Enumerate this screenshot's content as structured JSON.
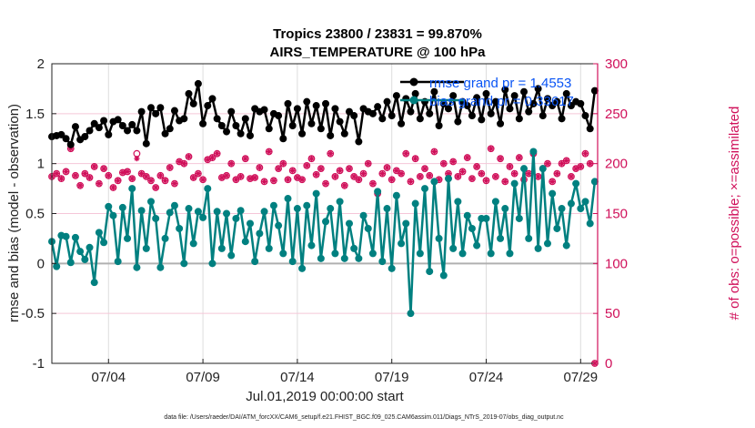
{
  "chart_data": {
    "type": "line",
    "title": [
      "Tropics 23800 / 23831 = 99.870%",
      "AIRS_TEMPERATURE @ 100 hPa"
    ],
    "xlabel": "Jul.01,2019 00:00:00 start",
    "ylabel": "rmse and bias (model - observation)",
    "y2label": "# of obs: o=possible; ×=assimilated",
    "footer": "data file: /Users/raeder/DAI/ATM_forcXX/CAM6_setup/f.e21.FHIST_BGC.f09_025.CAM6assim.011/Diags_NTrS_2019-07/obs_diag_output.nc",
    "x_unit": "days since Jul.01,2019 00:00",
    "x_step_days": 0.25,
    "xlim": [
      0,
      28.9
    ],
    "xticks": [
      {
        "value": 3,
        "label": "07/04"
      },
      {
        "value": 8,
        "label": "07/09"
      },
      {
        "value": 13,
        "label": "07/14"
      },
      {
        "value": 18,
        "label": "07/19"
      },
      {
        "value": 23,
        "label": "07/24"
      },
      {
        "value": 28,
        "label": "07/29"
      }
    ],
    "ylim": [
      -1,
      2
    ],
    "yticks": [
      "-1",
      "-0.5",
      "0",
      "0.5",
      "1",
      "1.5",
      "2"
    ],
    "y2lim": [
      0,
      300
    ],
    "y2ticks": [
      "0",
      "50",
      "100",
      "150",
      "200",
      "250",
      "300"
    ],
    "legend": {
      "placement": "top-right",
      "entries": [
        "rmse grand pr = 1.4553",
        "bias grand pr = 0.33617"
      ]
    },
    "colors": {
      "rmse": "#000000",
      "bias": "#008080",
      "obs": "#d0105a",
      "legend_text": "#0a55f5",
      "grid_v": "#dddddd",
      "grid_h": "#f5c6d8",
      "zero": "#b0b0b0"
    },
    "series": [
      {
        "name": "rmse",
        "axis": "left",
        "values": [
          1.27,
          1.28,
          1.29,
          1.25,
          1.19,
          1.37,
          1.24,
          1.27,
          1.33,
          1.4,
          1.36,
          1.43,
          1.29,
          1.42,
          1.44,
          1.38,
          1.33,
          1.39,
          1.33,
          1.52,
          1.2,
          1.56,
          1.5,
          1.56,
          1.3,
          1.35,
          1.53,
          1.43,
          1.45,
          1.7,
          1.6,
          1.8,
          1.4,
          1.58,
          1.65,
          1.45,
          1.38,
          1.32,
          1.52,
          1.38,
          1.3,
          1.45,
          1.28,
          1.55,
          1.52,
          1.54,
          1.35,
          1.5,
          1.48,
          1.25,
          1.6,
          1.38,
          1.55,
          1.3,
          1.62,
          1.4,
          1.58,
          1.35,
          1.6,
          1.28,
          1.55,
          1.42,
          1.3,
          1.52,
          1.48,
          1.22,
          1.55,
          1.52,
          1.5,
          1.57,
          1.45,
          1.62,
          1.48,
          1.68,
          1.4,
          1.65,
          1.52,
          1.7,
          1.45,
          1.62,
          1.5,
          1.72,
          1.38,
          1.6,
          1.55,
          1.68,
          1.42,
          1.62,
          1.58,
          1.48,
          1.66,
          1.44,
          1.7,
          1.5,
          1.62,
          1.4,
          1.74,
          1.55,
          1.68,
          1.45,
          1.72,
          1.52,
          1.6,
          1.75,
          1.48,
          1.65,
          1.58,
          1.62,
          1.45,
          1.7,
          1.58,
          1.62,
          1.6,
          1.48,
          1.35,
          1.73
        ]
      },
      {
        "name": "bias",
        "axis": "left",
        "values": [
          0.22,
          -0.03,
          0.28,
          0.27,
          0.01,
          0.26,
          0.12,
          0.04,
          0.16,
          -0.19,
          0.31,
          0.21,
          0.57,
          0.48,
          0.02,
          0.56,
          0.25,
          0.75,
          -0.04,
          0.53,
          0.15,
          0.62,
          0.45,
          -0.04,
          0.25,
          0.51,
          0.58,
          0.35,
          0.0,
          0.55,
          0.2,
          0.52,
          0.46,
          0.75,
          0.0,
          0.52,
          0.15,
          0.5,
          0.08,
          0.45,
          0.53,
          0.22,
          0.4,
          0.02,
          0.3,
          0.52,
          0.15,
          0.58,
          0.38,
          0.1,
          0.65,
          0.02,
          0.55,
          -0.05,
          0.58,
          0.18,
          0.7,
          0.05,
          0.42,
          0.55,
          0.1,
          0.62,
          0.05,
          0.4,
          0.15,
          0.05,
          0.48,
          0.35,
          0.1,
          0.72,
          0.02,
          0.55,
          -0.05,
          0.68,
          0.2,
          0.4,
          -0.5,
          0.6,
          0.1,
          0.75,
          -0.08,
          0.82,
          0.25,
          -0.12,
          0.85,
          0.15,
          0.62,
          0.1,
          0.48,
          0.35,
          0.18,
          0.45,
          0.45,
          0.1,
          0.62,
          0.25,
          0.55,
          0.1,
          0.8,
          0.45,
          0.95,
          0.25,
          1.12,
          0.15,
          0.95,
          0.2,
          0.7,
          0.35,
          0.55,
          0.18,
          0.6,
          0.8,
          0.55,
          0.62,
          0.4,
          0.82
        ]
      },
      {
        "name": "obs possible",
        "axis": "right",
        "values": [
          187,
          190,
          185,
          192,
          215,
          188,
          178,
          190,
          186,
          197,
          180,
          195,
          188,
          176,
          183,
          191,
          192,
          185,
          210,
          190,
          187,
          183,
          176,
          188,
          183,
          196,
          180,
          202,
          200,
          207,
          186,
          190,
          184,
          204,
          206,
          210,
          186,
          188,
          200,
          184,
          187,
          205,
          185,
          186,
          196,
          182,
          212,
          183,
          195,
          200,
          184,
          193,
          186,
          184,
          198,
          205,
          189,
          195,
          180,
          210,
          187,
          193,
          178,
          195,
          187,
          184,
          190,
          200,
          180,
          170,
          190,
          196,
          184,
          193,
          190,
          210,
          182,
          205,
          187,
          195,
          188,
          212,
          184,
          200,
          190,
          202,
          187,
          192,
          206,
          185,
          197,
          190,
          183,
          215,
          187,
          205,
          182,
          197,
          190,
          206,
          184,
          190,
          210,
          187,
          195,
          200,
          182,
          190,
          200,
          203,
          187,
          195,
          197,
          210,
          200,
          0
        ]
      },
      {
        "name": "obs assimilated",
        "axis": "right",
        "values": [
          187,
          190,
          185,
          192,
          215,
          188,
          178,
          190,
          186,
          197,
          180,
          195,
          188,
          176,
          183,
          191,
          192,
          185,
          205,
          190,
          187,
          183,
          176,
          188,
          183,
          196,
          180,
          202,
          200,
          207,
          186,
          190,
          184,
          204,
          206,
          210,
          186,
          188,
          200,
          184,
          187,
          205,
          185,
          186,
          196,
          182,
          212,
          183,
          195,
          200,
          184,
          193,
          186,
          184,
          198,
          205,
          189,
          195,
          180,
          210,
          187,
          193,
          178,
          195,
          187,
          184,
          190,
          200,
          180,
          170,
          190,
          196,
          184,
          193,
          190,
          210,
          182,
          205,
          187,
          195,
          188,
          212,
          184,
          200,
          190,
          202,
          187,
          192,
          206,
          185,
          197,
          190,
          183,
          215,
          187,
          205,
          182,
          197,
          190,
          206,
          184,
          190,
          210,
          187,
          195,
          200,
          182,
          190,
          200,
          203,
          187,
          195,
          197,
          210,
          200,
          0
        ]
      }
    ]
  }
}
